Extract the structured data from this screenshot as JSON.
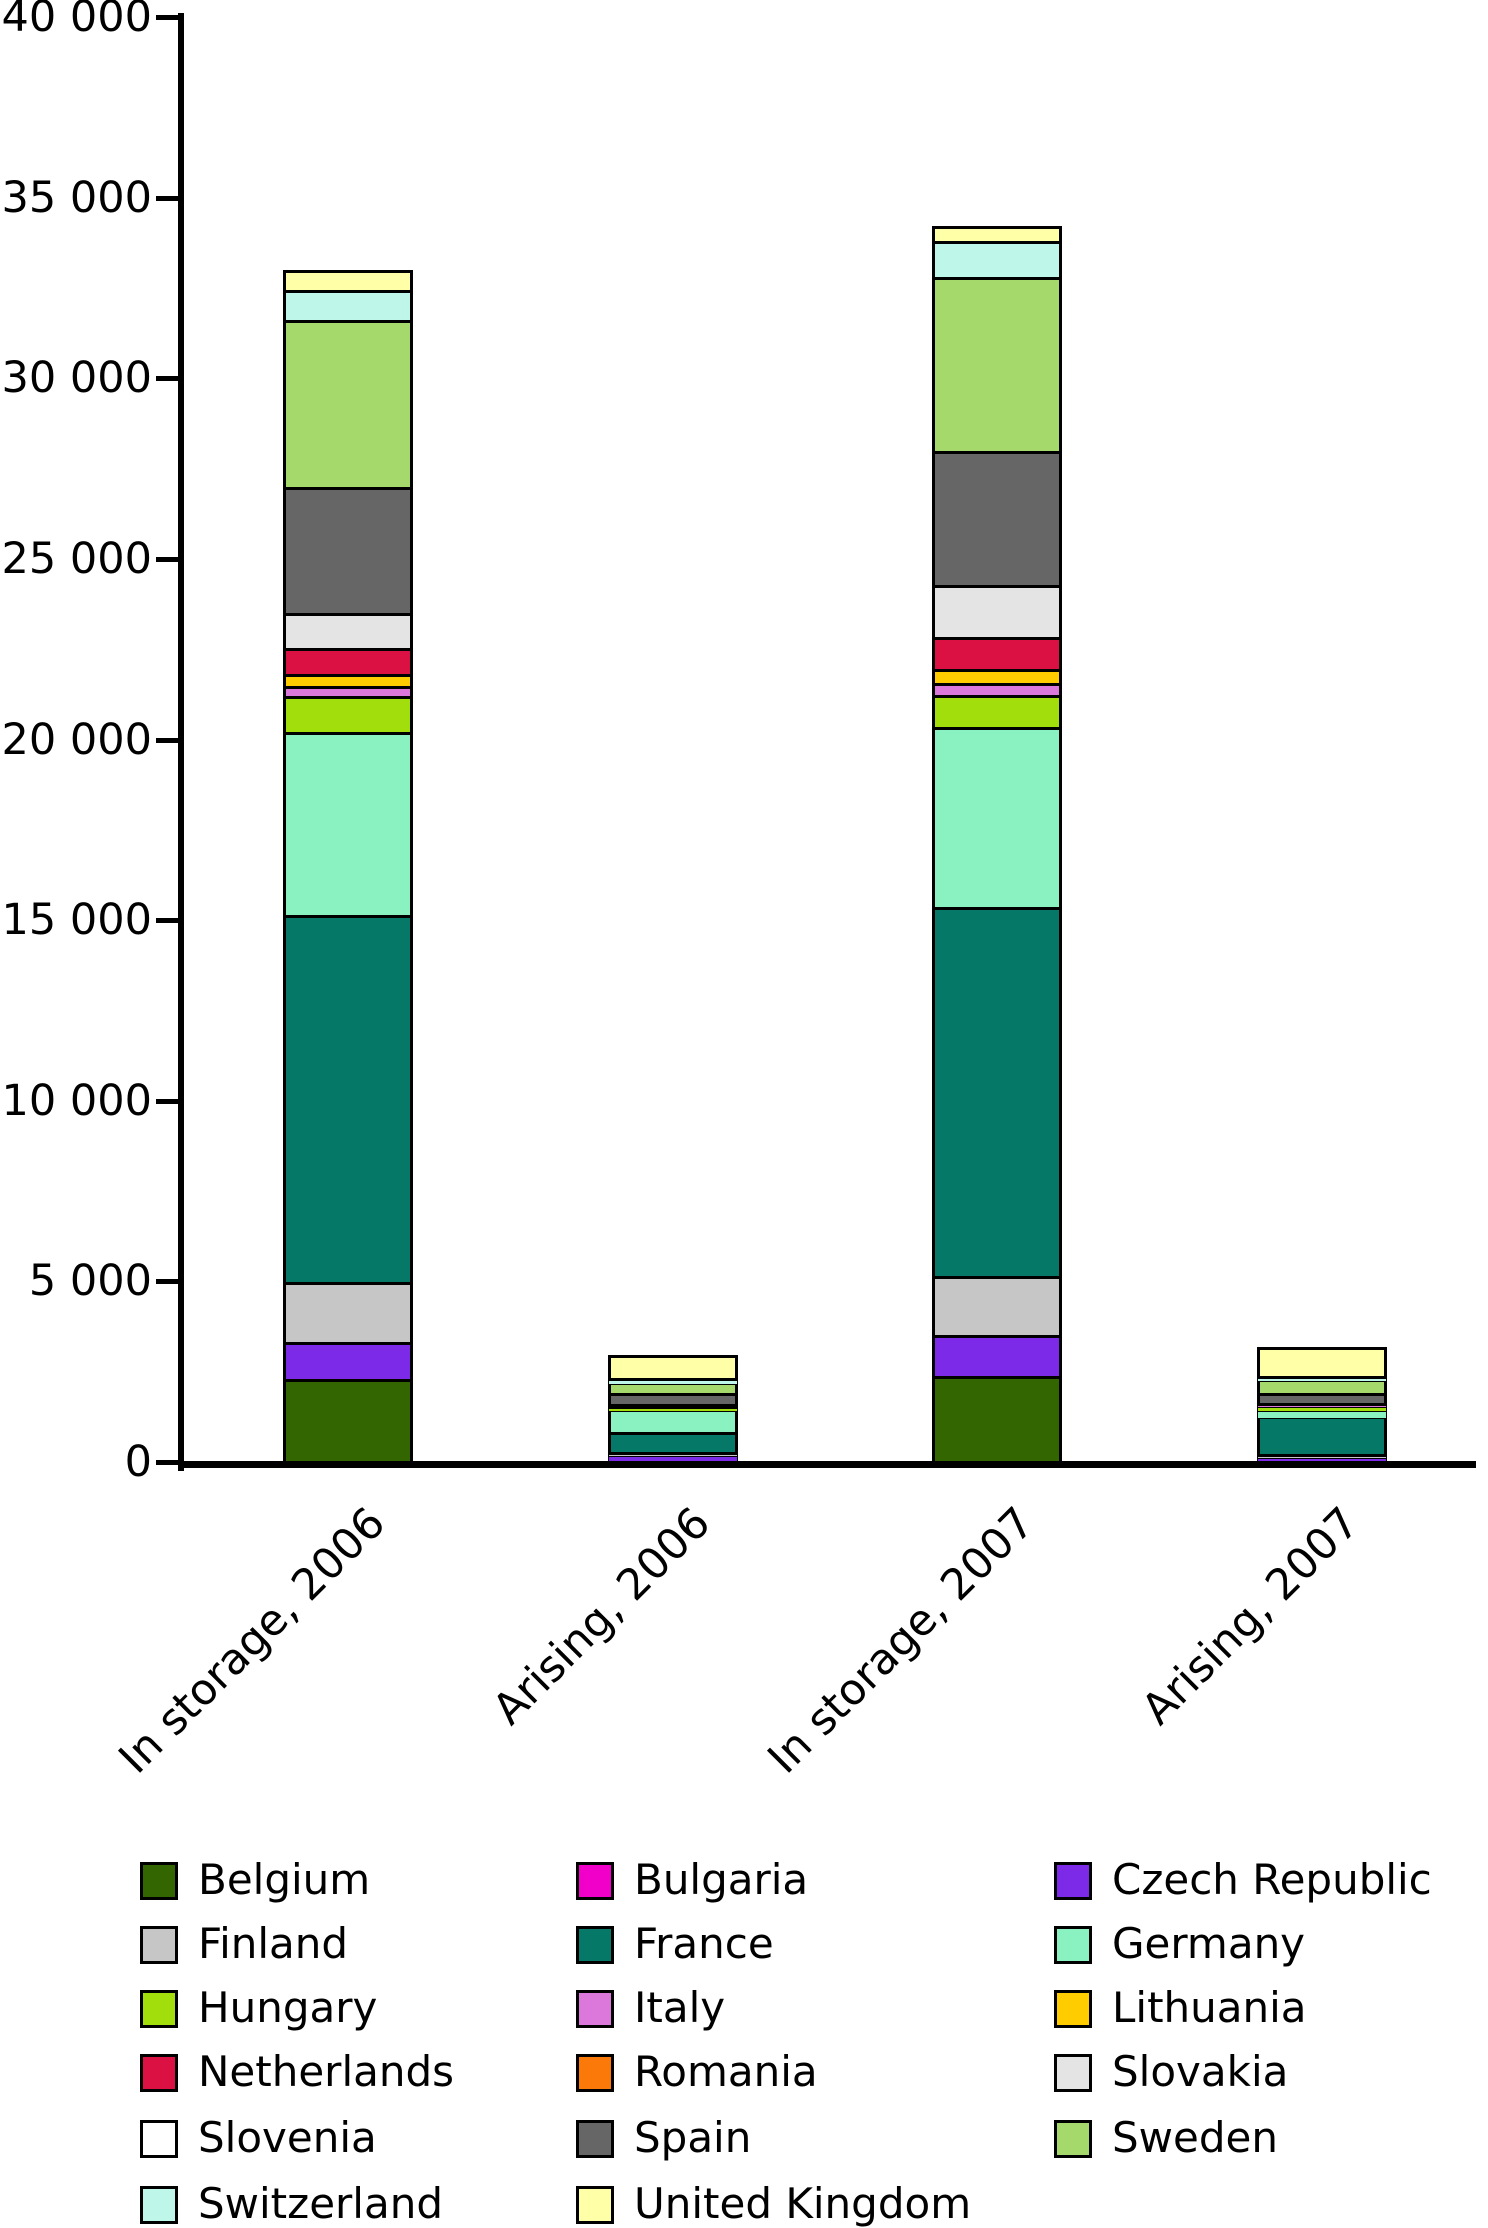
{
  "chart_data": {
    "type": "bar",
    "stacked": true,
    "title": "",
    "xlabel": "",
    "ylabel": "",
    "categories": [
      "In storage, 2006",
      "Arising, 2006",
      "In storage, 2007",
      "Arising, 2007"
    ],
    "series": [
      {
        "name": "Belgium",
        "color": "#336600",
        "values": [
          2300,
          90,
          2380,
          50
        ]
      },
      {
        "name": "Bulgaria",
        "color": "#F000C8",
        "values": [
          0,
          0,
          0,
          0
        ]
      },
      {
        "name": "Czech Republic",
        "color": "#7D2AE8",
        "values": [
          1030,
          140,
          1140,
          110
        ]
      },
      {
        "name": "Finland",
        "color": "#C6C6C6",
        "values": [
          1640,
          40,
          1640,
          50
        ]
      },
      {
        "name": "France",
        "color": "#067868",
        "values": [
          10170,
          550,
          10200,
          1050
        ]
      },
      {
        "name": "Germany",
        "color": "#8AF2C0",
        "values": [
          5070,
          660,
          4990,
          220
        ]
      },
      {
        "name": "Hungary",
        "color": "#A2DE0C",
        "values": [
          1000,
          80,
          890,
          110
        ]
      },
      {
        "name": "Italy",
        "color": "#DC78DC",
        "values": [
          280,
          30,
          330,
          40
        ]
      },
      {
        "name": "Lithuania",
        "color": "#FFCC00",
        "values": [
          330,
          20,
          390,
          0
        ]
      },
      {
        "name": "Netherlands",
        "color": "#DC1143",
        "values": [
          720,
          0,
          890,
          0
        ]
      },
      {
        "name": "Romania",
        "color": "#FA7908",
        "values": [
          0,
          0,
          0,
          0
        ]
      },
      {
        "name": "Slovakia",
        "color": "#E4E4E4",
        "values": [
          970,
          0,
          1440,
          0
        ]
      },
      {
        "name": "Slovenia",
        "color": "#FFFFFF",
        "values": [
          0,
          0,
          0,
          0
        ]
      },
      {
        "name": "Spain",
        "color": "#666666",
        "values": [
          3470,
          300,
          3690,
          280
        ]
      },
      {
        "name": "Sweden",
        "color": "#A5D96B",
        "values": [
          4630,
          300,
          4820,
          390
        ]
      },
      {
        "name": "Switzerland",
        "color": "#BEF7EA",
        "values": [
          830,
          110,
          1000,
          80
        ]
      },
      {
        "name": "United Kingdom",
        "color": "#FFFFA8",
        "values": [
          550,
          650,
          420,
          800
        ]
      }
    ],
    "totals": [
      32990,
      2970,
      34220,
      3180
    ],
    "ylim": [
      0,
      40000
    ],
    "ytick_step": 5000,
    "yticks": [
      0,
      5000,
      10000,
      15000,
      20000,
      25000,
      30000,
      35000,
      40000
    ],
    "ytick_labels": [
      "0",
      "5 000",
      "10 000",
      "15 000",
      "20 000",
      "25 000",
      "30 000",
      "35 000",
      "40 000"
    ],
    "grid": false,
    "legend_position": "bottom",
    "legend_columns": 3,
    "axis_color": "#000000",
    "background_color": "#ffffff"
  }
}
